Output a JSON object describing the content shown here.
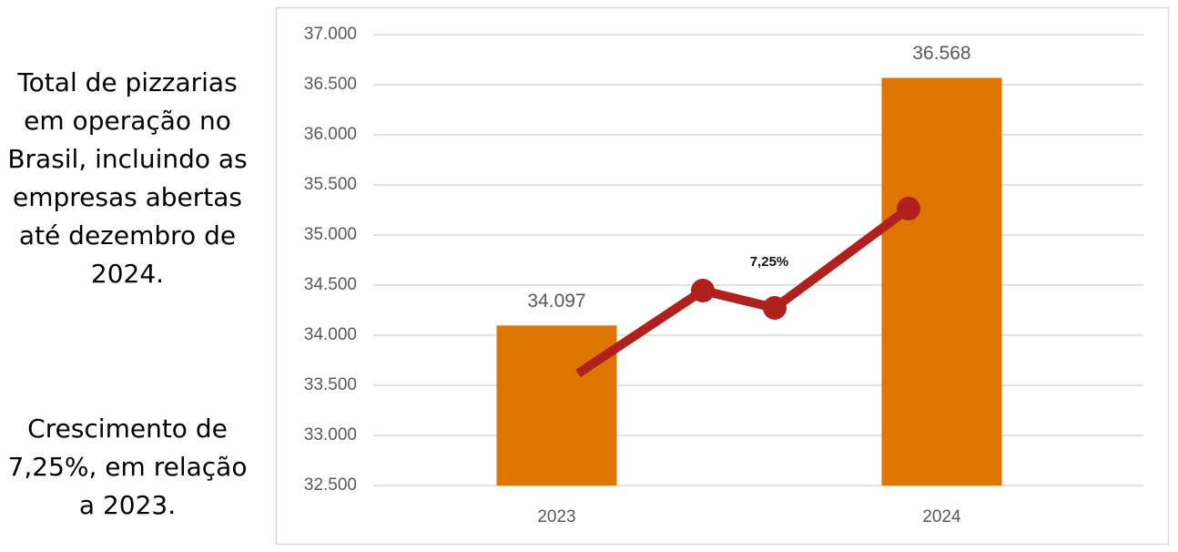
{
  "side_text": [
    "Total de pizzarias em operação no Brasil, incluindo as empresas abertas até dezembro de 2024.",
    "Crescimento de 7,25%, em relação a 2023."
  ],
  "chart_data": {
    "type": "bar",
    "categories": [
      "2023",
      "2024"
    ],
    "values": [
      34097,
      36568
    ],
    "value_labels": [
      "34.097",
      "36.568"
    ],
    "color": "#de7500",
    "annotation": "7,25%",
    "ylim": [
      32500,
      37000
    ],
    "yticks": [
      {
        "value": 32500,
        "label": "32.500"
      },
      {
        "value": 33000,
        "label": "33.000"
      },
      {
        "value": 33500,
        "label": "33.500"
      },
      {
        "value": 34000,
        "label": "34.000"
      },
      {
        "value": 34500,
        "label": "34.500"
      },
      {
        "value": 35000,
        "label": "35.000"
      },
      {
        "value": 35500,
        "label": "35.500"
      },
      {
        "value": 36000,
        "label": "36.000"
      },
      {
        "value": 36500,
        "label": "36.500"
      },
      {
        "value": 37000,
        "label": "37.000"
      }
    ],
    "grid": true
  }
}
